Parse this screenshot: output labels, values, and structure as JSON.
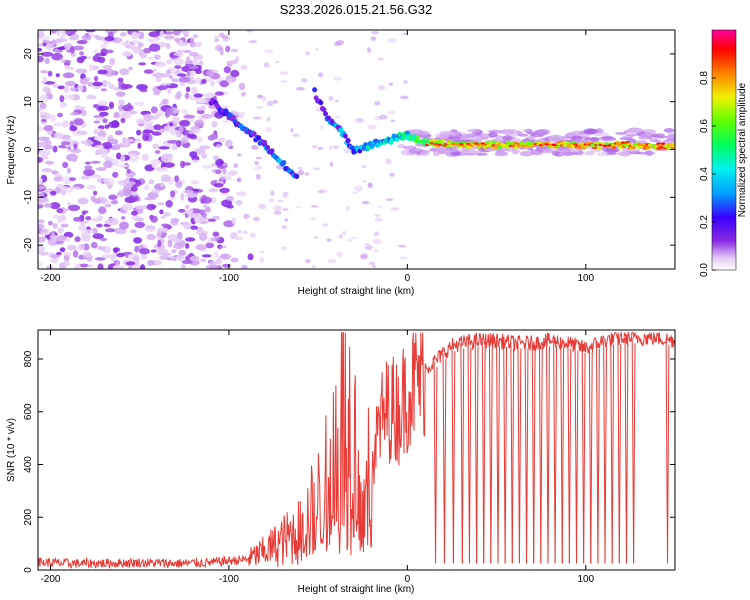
{
  "title": "S233.2026.015.21.56.G32",
  "chart_data": [
    {
      "type": "heatmap",
      "title": "S233.2026.015.21.56.G32",
      "xlabel": "Height of straight line (km)",
      "ylabel": "Frequency (Hz)",
      "xlim": [
        -207,
        150
      ],
      "ylim": [
        -25,
        25
      ],
      "xticks": [
        -200,
        -100,
        0,
        100
      ],
      "yticks": [
        -20,
        -10,
        0,
        10,
        20
      ],
      "colorbar": {
        "label": "Normalized spectral amplitude",
        "range": [
          0,
          1
        ],
        "ticks": [
          "0.0",
          "0.2",
          "0.4",
          "0.6",
          "0.8"
        ],
        "tick_values": [
          0.0,
          0.2,
          0.4,
          0.6,
          0.8
        ]
      },
      "ridge": {
        "description_segments": [
          {
            "x": [
              -110,
              -60
            ],
            "freq": [
              10,
              -6
            ],
            "amplitude": 0.3
          },
          {
            "x": [
              -55,
              -30
            ],
            "freq": [
              14,
              0
            ],
            "amplitude": 0.3
          },
          {
            "x": [
              -30,
              0
            ],
            "freq": [
              0,
              3
            ],
            "amplitude": 0.45
          },
          {
            "x": [
              0,
              150
            ],
            "freq": [
              1.5,
              0.5
            ],
            "amplitude": 0.85
          }
        ],
        "points": [
          {
            "x": -110,
            "f": 10,
            "a": 0.25
          },
          {
            "x": -100,
            "f": 7,
            "a": 0.3
          },
          {
            "x": -90,
            "f": 4,
            "a": 0.35
          },
          {
            "x": -80,
            "f": 1,
            "a": 0.35
          },
          {
            "x": -70,
            "f": -3,
            "a": 0.4
          },
          {
            "x": -62,
            "f": -6,
            "a": 0.35
          },
          {
            "x": -52,
            "f": 12,
            "a": 0.3
          },
          {
            "x": -45,
            "f": 7,
            "a": 0.35
          },
          {
            "x": -38,
            "f": 4,
            "a": 0.4
          },
          {
            "x": -30,
            "f": 0,
            "a": 0.45
          },
          {
            "x": -20,
            "f": 1,
            "a": 0.5
          },
          {
            "x": -10,
            "f": 2,
            "a": 0.5
          },
          {
            "x": 0,
            "f": 3,
            "a": 0.55
          },
          {
            "x": 10,
            "f": 1.5,
            "a": 0.7
          },
          {
            "x": 30,
            "f": 1,
            "a": 0.85
          },
          {
            "x": 60,
            "f": 1,
            "a": 0.8
          },
          {
            "x": 90,
            "f": 1,
            "a": 0.85
          },
          {
            "x": 120,
            "f": 1,
            "a": 0.9
          },
          {
            "x": 150,
            "f": 0.5,
            "a": 0.9
          }
        ]
      }
    },
    {
      "type": "line",
      "xlabel": "Height of straight line (km)",
      "ylabel": "SNR (10 * v/v)",
      "xlim": [
        -207,
        150
      ],
      "ylim": [
        0,
        910
      ],
      "xticks": [
        -200,
        -100,
        0,
        100
      ],
      "yticks": [
        0,
        200,
        400,
        600,
        800
      ],
      "series": [
        {
          "name": "SNR",
          "color": "#e83a36",
          "x": [
            -207,
            -190,
            -170,
            -150,
            -130,
            -110,
            -100,
            -90,
            -80,
            -70,
            -60,
            -50,
            -45,
            -40,
            -35,
            -30,
            -25,
            -20,
            -15,
            -10,
            -5,
            0,
            5,
            10,
            15,
            20,
            25,
            30,
            40,
            50,
            60,
            70,
            80,
            90,
            100,
            110,
            120,
            130,
            140,
            150
          ],
          "y": [
            30,
            25,
            25,
            28,
            25,
            28,
            35,
            40,
            70,
            110,
            150,
            250,
            320,
            480,
            600,
            500,
            200,
            400,
            560,
            620,
            600,
            680,
            720,
            760,
            790,
            820,
            850,
            860,
            870,
            870,
            860,
            860,
            870,
            860,
            840,
            870,
            880,
            880,
            880,
            870
          ]
        }
      ],
      "dropouts_x": [
        15,
        20,
        25,
        30,
        34,
        38,
        42,
        46,
        50,
        54,
        58,
        62,
        66,
        70,
        74,
        78,
        82,
        86,
        90,
        94,
        98,
        102,
        106,
        110,
        114,
        118,
        122,
        126,
        145
      ]
    }
  ]
}
